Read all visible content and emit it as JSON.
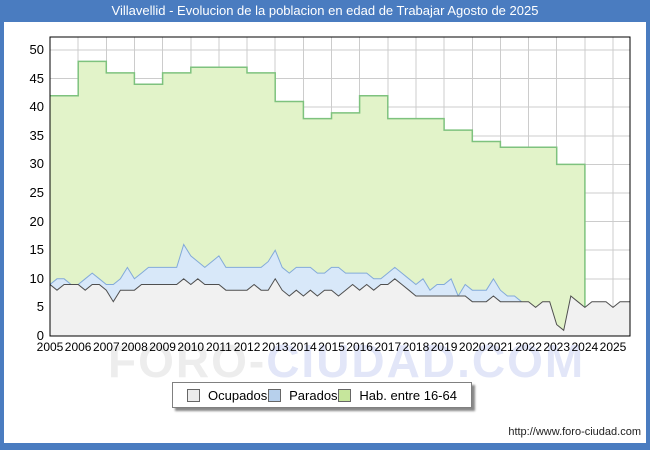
{
  "title": "Villavellid - Evolucion de la poblacion en edad de Trabajar Agosto de 2025",
  "colors": {
    "accent_blue": "#4a7cc0",
    "title_text": "#ffffff",
    "grid": "#cccccc",
    "plot_frame": "#000000",
    "watermark_gray": "#ededed",
    "watermark_blue": "#e2e6f8"
  },
  "watermark": {
    "left": "FORO-",
    "right": "CIUDAD.COM"
  },
  "footer": {
    "url": "http://www.foro-ciudad.com"
  },
  "legend": {
    "items": [
      {
        "label": "Ocupados",
        "color": "#ececec",
        "border": "#666666"
      },
      {
        "label": "Parados",
        "color": "#b7d0ec",
        "border": "#666666"
      },
      {
        "label": "Hab. entre 16-64",
        "color": "#c6e69c",
        "border": "#666666"
      }
    ]
  },
  "chart_data": {
    "type": "area",
    "title": "Villavellid - Evolucion de la poblacion en edad de Trabajar Agosto de 2025",
    "xlabel": "",
    "ylabel": "",
    "grid": true,
    "legend_position": "bottom",
    "x_axis": {
      "start_year": 2005,
      "end_year": 2025,
      "end_month_label": "Agosto 2025",
      "tick_labels": [
        "2005",
        "2006",
        "2007",
        "2008",
        "2009",
        "2010",
        "2011",
        "2012",
        "2013",
        "2014",
        "2015",
        "2016",
        "2017",
        "2018",
        "2019",
        "2020",
        "2021",
        "2022",
        "2023",
        "2024",
        "2025"
      ]
    },
    "y_axis": {
      "min": 0,
      "max": 52,
      "tick_step": 5,
      "tick_labels": [
        "0",
        "5",
        "10",
        "15",
        "20",
        "25",
        "30",
        "35",
        "40",
        "45",
        "50"
      ]
    },
    "series": [
      {
        "name": "Hab. entre 16-64",
        "resolution": "annual",
        "start_year": 2005,
        "last_year": 2023,
        "fill": "#e2f3c9",
        "line": "#7ec27e",
        "values": [
          42,
          48,
          46,
          44,
          46,
          47,
          47,
          46,
          41,
          38,
          39,
          42,
          38,
          38,
          36,
          34,
          33,
          33,
          30
        ]
      },
      {
        "name": "Parados",
        "resolution": "quarterly",
        "start_year": 2005,
        "last_year": 2021,
        "stacked_on": "Ocupados",
        "fill": "#d8e8f9",
        "line": "#83aad9",
        "values": [
          0,
          2,
          1,
          0,
          0,
          2,
          2,
          1,
          1,
          3,
          2,
          4,
          2,
          2,
          3,
          3,
          3,
          3,
          3,
          6,
          5,
          3,
          3,
          4,
          5,
          4,
          4,
          4,
          4,
          3,
          4,
          5,
          5,
          4,
          4,
          4,
          5,
          4,
          4,
          3,
          4,
          5,
          3,
          2,
          3,
          2,
          2,
          1,
          2,
          2,
          2,
          2,
          2,
          3,
          1,
          2,
          2,
          3,
          0,
          2,
          2,
          2,
          2,
          3,
          2,
          1,
          1,
          0
        ]
      },
      {
        "name": "Ocupados",
        "resolution": "quarterly",
        "start_year": 2005,
        "last_year": 2025,
        "fill": "#f1f1f1",
        "line": "#4f4f4f",
        "values": [
          9,
          8,
          9,
          9,
          9,
          8,
          9,
          9,
          8,
          6,
          8,
          8,
          8,
          9,
          9,
          9,
          9,
          9,
          9,
          10,
          9,
          10,
          9,
          9,
          9,
          8,
          8,
          8,
          8,
          9,
          8,
          8,
          10,
          8,
          7,
          8,
          7,
          8,
          7,
          8,
          8,
          7,
          8,
          9,
          8,
          9,
          8,
          9,
          9,
          10,
          9,
          8,
          7,
          7,
          7,
          7,
          7,
          7,
          7,
          7,
          6,
          6,
          6,
          7,
          6,
          6,
          6,
          6,
          6,
          5,
          6,
          6,
          2,
          1,
          7,
          6,
          5,
          6,
          6,
          6,
          5,
          6,
          6
        ]
      }
    ]
  }
}
